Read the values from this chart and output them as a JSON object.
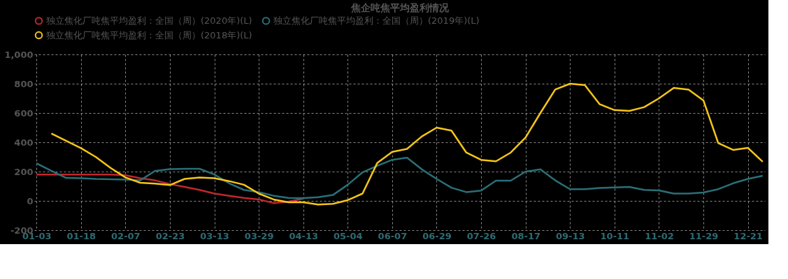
{
  "chart_data": {
    "type": "line",
    "title": "焦企吨焦平均盈利情况",
    "categories": [
      "01-03",
      null,
      null,
      "01-18",
      null,
      null,
      "02-07",
      null,
      null,
      "02-23",
      null,
      null,
      "03-13",
      null,
      null,
      "03-29",
      null,
      null,
      "04-13",
      null,
      null,
      "05-04",
      null,
      null,
      "06-07",
      null,
      null,
      "06-29",
      null,
      null,
      "07-26",
      null,
      null,
      "08-17",
      null,
      null,
      "09-13",
      null,
      null,
      "10-11",
      null,
      null,
      "11-02",
      null,
      null,
      "11-29",
      null,
      null,
      "12-21",
      null
    ],
    "series": [
      {
        "name": "独立焦化厂吨焦平均盈利：全国（周）(2020年)(L)",
        "color": "#c0272d",
        "values": [
          180,
          180,
          180,
          180,
          180,
          180,
          175,
          155,
          140,
          115,
          95,
          75,
          50,
          35,
          20,
          10,
          -15,
          -5,
          15,
          null,
          null,
          null,
          null,
          null,
          null,
          null,
          null,
          null,
          null,
          null,
          null,
          null,
          null,
          null,
          null,
          null,
          null,
          null,
          null,
          null,
          null,
          null,
          null,
          null,
          null,
          null,
          null,
          null,
          null,
          null
        ]
      },
      {
        "name": "独立焦化厂吨焦平均盈利：全国（周）(2019年)(L)",
        "color": "#2a6f77",
        "values": [
          257,
          205,
          157,
          155,
          150,
          148,
          145,
          140,
          205,
          217,
          219,
          219,
          180,
          120,
          75,
          60,
          35,
          20,
          19,
          25,
          40,
          110,
          195,
          240,
          280,
          295,
          215,
          150,
          90,
          60,
          70,
          138,
          138,
          200,
          215,
          140,
          80,
          80,
          88,
          92,
          95,
          75,
          71,
          50,
          50,
          57,
          80,
          120,
          150,
          171
        ]
      },
      {
        "name": "独立焦化厂吨焦平均盈利：全国（周）(2018年)(L)",
        "color": "#f5c518",
        "values": [
          null,
          460,
          410,
          360,
          300,
          225,
          160,
          124,
          118,
          108,
          150,
          160,
          155,
          135,
          110,
          50,
          10,
          -10,
          -10,
          -25,
          -20,
          5,
          50,
          260,
          335,
          355,
          440,
          500,
          480,
          330,
          280,
          270,
          330,
          433,
          600,
          760,
          800,
          790,
          660,
          620,
          614,
          640,
          700,
          771,
          760,
          686,
          395,
          348,
          362,
          267
        ]
      }
    ],
    "ylim": [
      -200,
      1000
    ],
    "yticks": [
      -200,
      0,
      200,
      400,
      600,
      800,
      {
        "value": 1000,
        "label": "1,000"
      }
    ],
    "grid": true,
    "legend": "top",
    "line_style": "solid",
    "marker": "none"
  }
}
